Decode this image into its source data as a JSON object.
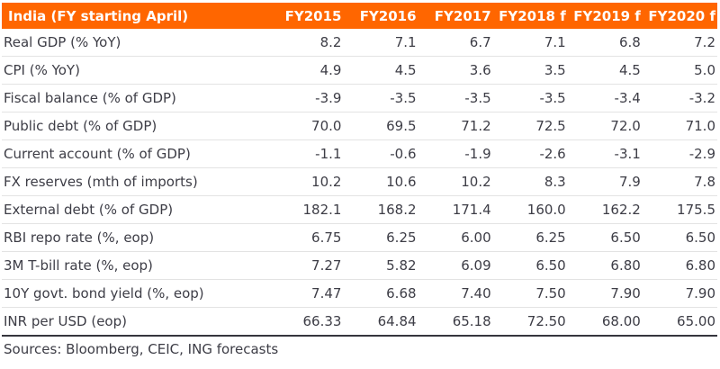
{
  "colors": {
    "header_bg": "#FF6600",
    "header_text": "#FFFFFF",
    "body_text": "#3D3D46",
    "row_divider": "#E3E3E3",
    "table_bottom_rule": "#35353D"
  },
  "chart_data": {
    "type": "table",
    "title": "India (FY starting April)",
    "columns": [
      "FY2015",
      "FY2016",
      "FY2017",
      "FY2018 f",
      "FY2019 f",
      "FY2020 f"
    ],
    "rows": [
      {
        "label": "Real GDP (% YoY)",
        "values": [
          "8.2",
          "7.1",
          "6.7",
          "7.1",
          "6.8",
          "7.2"
        ]
      },
      {
        "label": "CPI (% YoY)",
        "values": [
          "4.9",
          "4.5",
          "3.6",
          "3.5",
          "4.5",
          "5.0"
        ]
      },
      {
        "label": "Fiscal balance (% of GDP)",
        "values": [
          "-3.9",
          "-3.5",
          "-3.5",
          "-3.5",
          "-3.4",
          "-3.2"
        ]
      },
      {
        "label": "Public debt (% of GDP)",
        "values": [
          "70.0",
          "69.5",
          "71.2",
          "72.5",
          "72.0",
          "71.0"
        ]
      },
      {
        "label": "Current account (% of GDP)",
        "values": [
          "-1.1",
          "-0.6",
          "-1.9",
          "-2.6",
          "-3.1",
          "-2.9"
        ]
      },
      {
        "label": "FX reserves (mth of imports)",
        "values": [
          "10.2",
          "10.6",
          "10.2",
          "8.3",
          "7.9",
          "7.8"
        ]
      },
      {
        "label": "External debt (% of GDP)",
        "values": [
          "182.1",
          "168.2",
          "171.4",
          "160.0",
          "162.2",
          "175.5"
        ]
      },
      {
        "label": "RBI repo rate (%, eop)",
        "values": [
          "6.75",
          "6.25",
          "6.00",
          "6.25",
          "6.50",
          "6.50"
        ]
      },
      {
        "label": "3M T-bill rate (%, eop)",
        "values": [
          "7.27",
          "5.82",
          "6.09",
          "6.50",
          "6.80",
          "6.80"
        ]
      },
      {
        "label": "10Y govt. bond yield (%, eop)",
        "values": [
          "7.47",
          "6.68",
          "7.40",
          "7.50",
          "7.90",
          "7.90"
        ]
      },
      {
        "label": "INR per USD (eop)",
        "values": [
          "66.33",
          "64.84",
          "65.18",
          "72.50",
          "68.00",
          "65.00"
        ]
      }
    ],
    "source_note": "Sources: Bloomberg, CEIC, ING forecasts"
  }
}
